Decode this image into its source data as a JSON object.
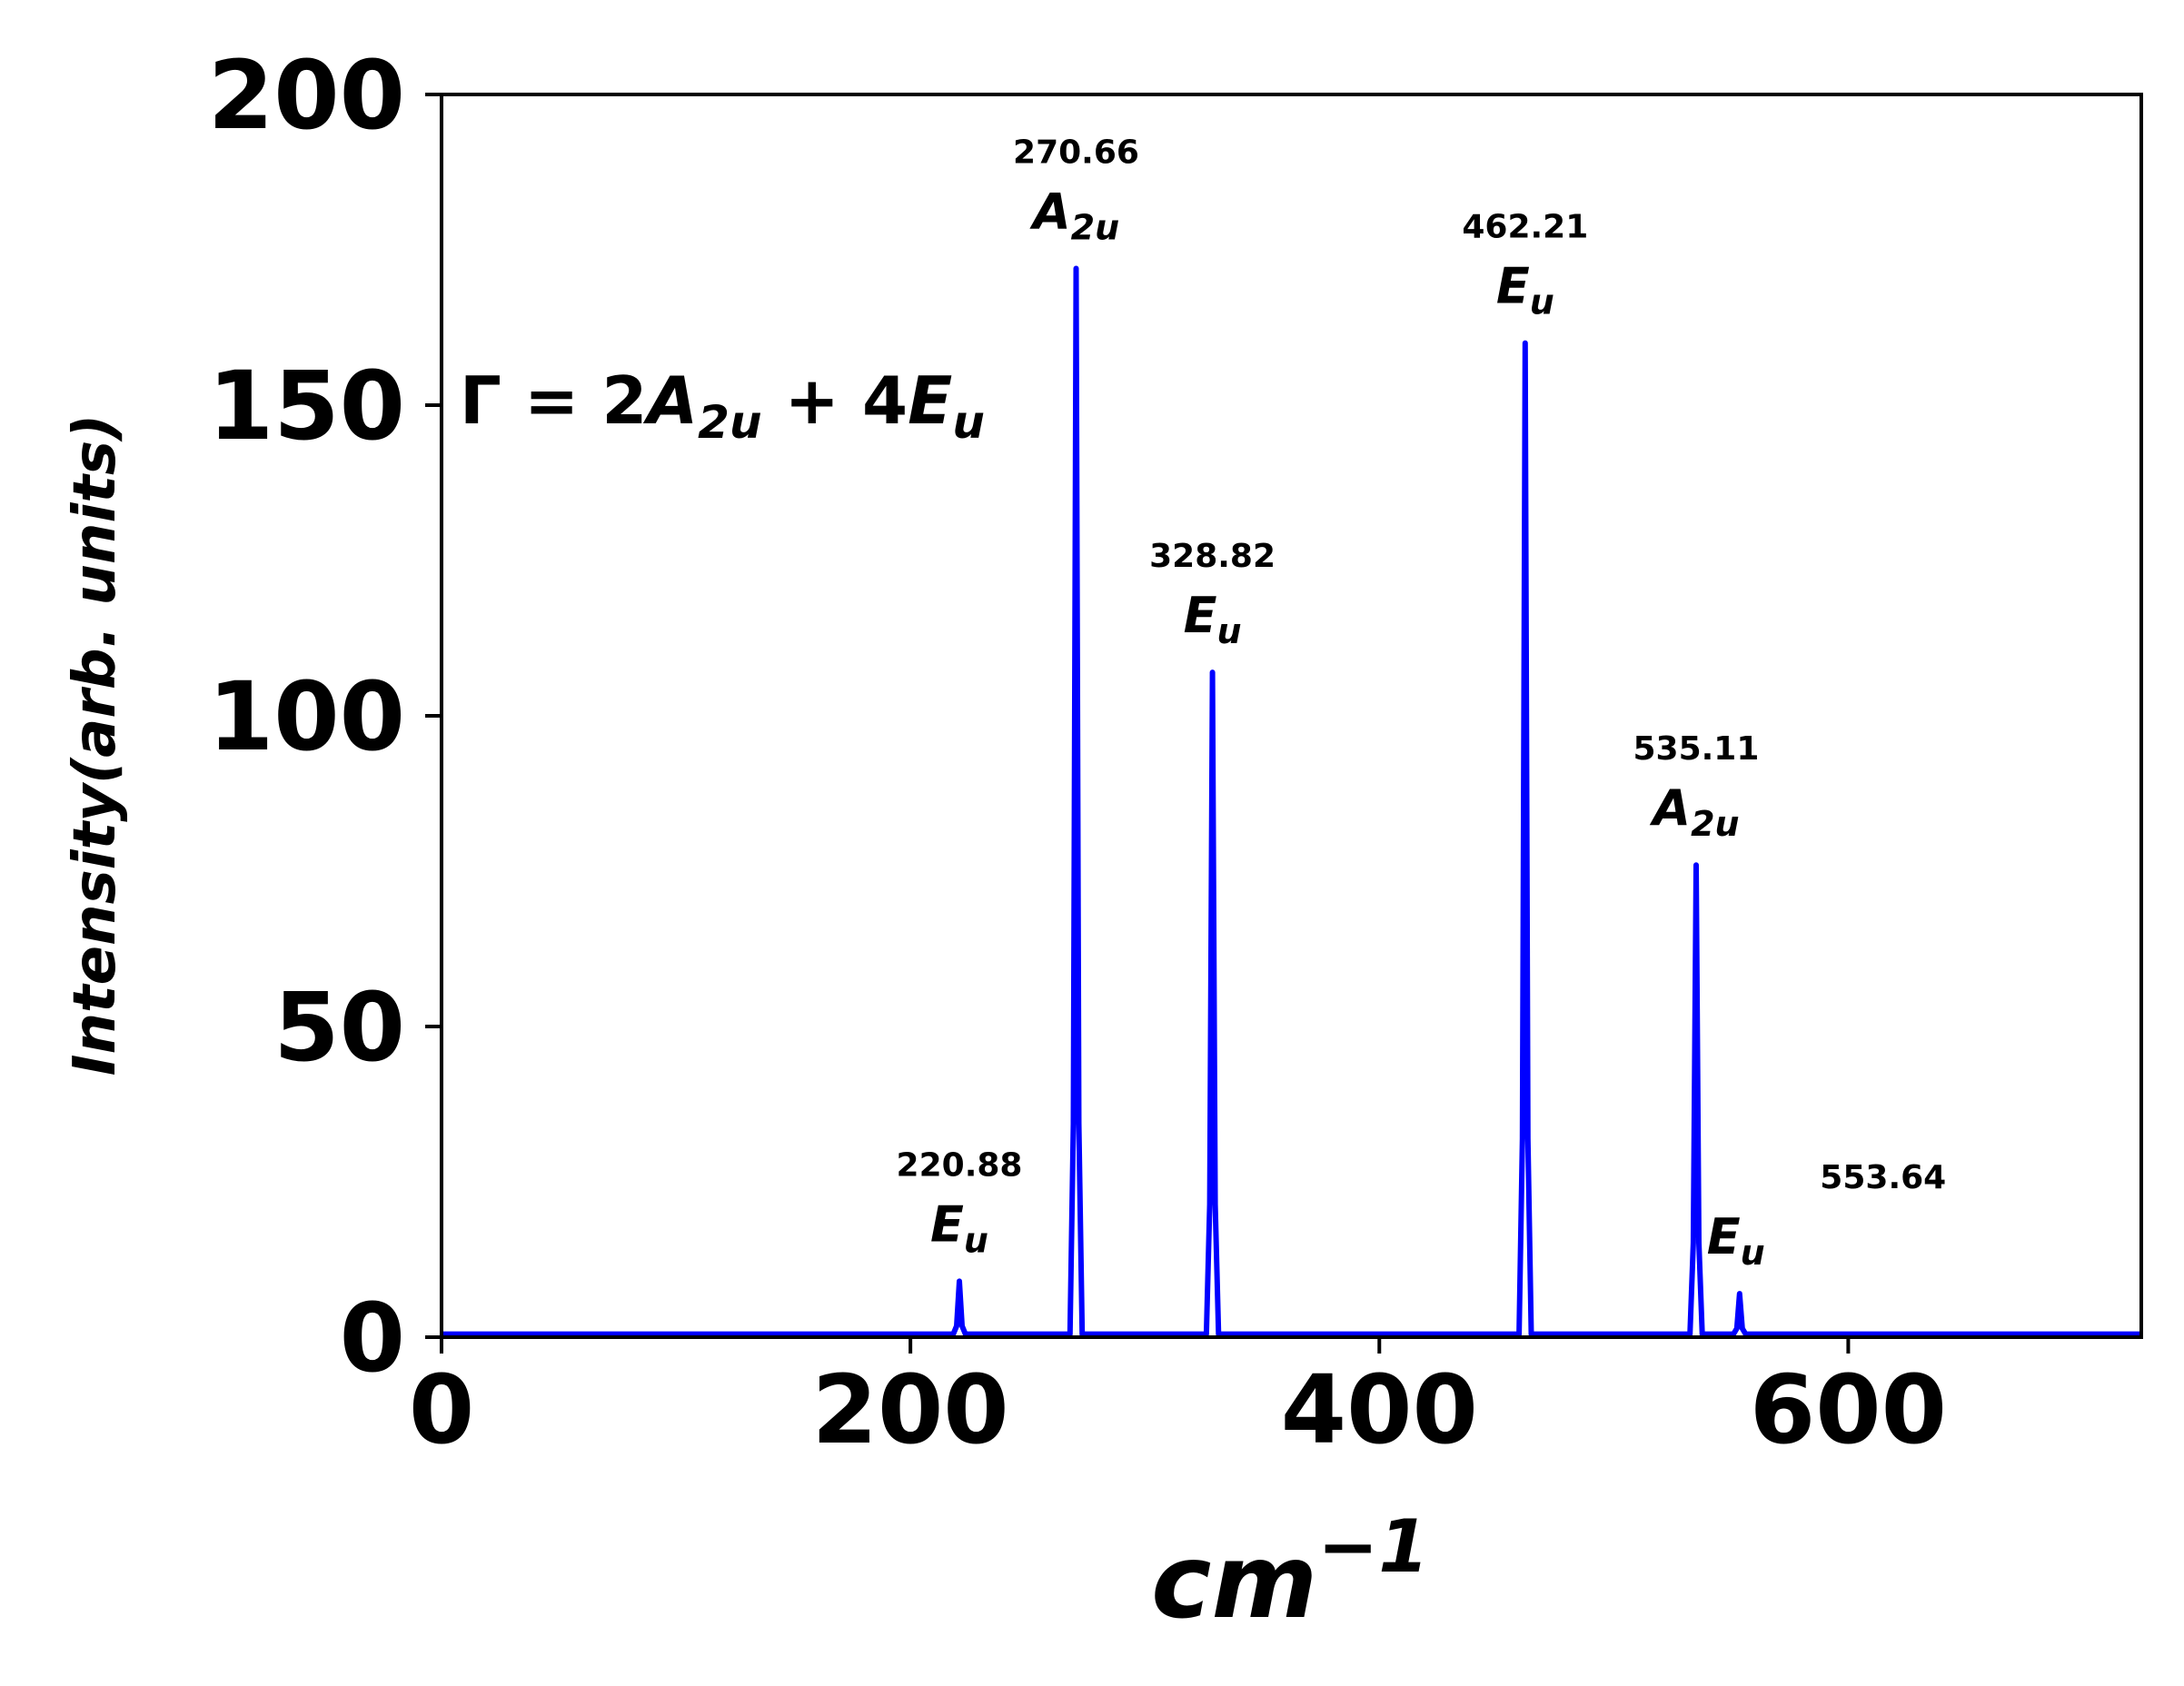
{
  "chart_data": {
    "type": "line",
    "xlabel": {
      "base": "cm",
      "sup": "−1"
    },
    "ylabel": "Intensity(arb. units)",
    "xlim": [
      0,
      725
    ],
    "ylim": [
      0,
      200
    ],
    "xticks": [
      0,
      200,
      400,
      600
    ],
    "yticks": [
      0,
      50,
      100,
      150,
      200
    ],
    "grid": false,
    "line_color": "#0000ff",
    "formula": {
      "prefix": "Γ = 2",
      "sym1": "A",
      "sub1": "2u",
      "mid": " + 4",
      "sym2": "E",
      "sub2": "u"
    },
    "peaks": [
      {
        "x": 220.88,
        "y": 9,
        "freq": "220.88",
        "sym": "E",
        "sub": "u"
      },
      {
        "x": 270.66,
        "y": 172,
        "freq": "270.66",
        "sym": "A",
        "sub": "2u"
      },
      {
        "x": 328.82,
        "y": 107,
        "freq": "328.82",
        "sym": "E",
        "sub": "u"
      },
      {
        "x": 462.21,
        "y": 160,
        "freq": "462.21",
        "sym": "E",
        "sub": "u"
      },
      {
        "x": 535.11,
        "y": 76,
        "freq": "535.11",
        "sym": "A",
        "sub": "2u"
      },
      {
        "x": 553.64,
        "y": 7,
        "freq": "553.64",
        "sym": "E",
        "sub": "u"
      }
    ]
  }
}
